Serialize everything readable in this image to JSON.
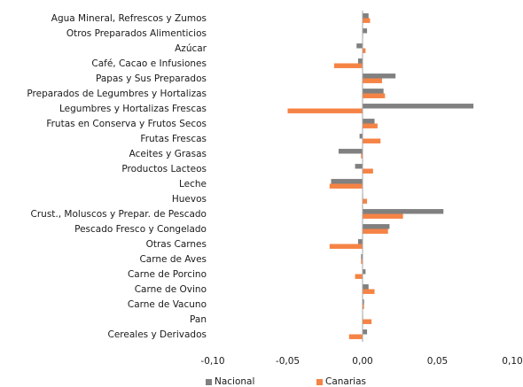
{
  "chart_data": {
    "type": "bar",
    "orientation": "horizontal",
    "categories": [
      "Agua Mineral, Refrescos y Zumos",
      "Otros Preparados Alimenticios",
      "Azúcar",
      "Café, Cacao e Infusiones",
      "Papas y Sus Preparados",
      "Preparados de Legumbres y Hortalizas",
      "Legumbres y Hortalizas Frescas",
      "Frutas en Conserva y Frutos Secos",
      "Frutas Frescas",
      "Aceites y Grasas",
      "Productos Lacteos",
      "Leche",
      "Huevos",
      "Crust., Moluscos y Prepar. de Pescado",
      "Pescado Fresco y Congelado",
      "Otras Carnes",
      "Carne de Aves",
      "Carne de Porcino",
      "Carne de Ovino",
      "Carne de Vacuno",
      "Pan",
      "Cereales y Derivados"
    ],
    "series": [
      {
        "name": "Nacional",
        "color": "#808080",
        "values": [
          0.004,
          0.003,
          -0.004,
          -0.003,
          0.022,
          0.014,
          0.074,
          0.008,
          -0.002,
          -0.016,
          -0.005,
          -0.021,
          0.0,
          0.054,
          0.018,
          -0.003,
          -0.001,
          0.002,
          0.004,
          0.001,
          0.0,
          0.003
        ]
      },
      {
        "name": "Canarias",
        "color": "#f58345",
        "values": [
          0.005,
          0.0,
          0.002,
          -0.019,
          0.013,
          0.015,
          -0.05,
          0.01,
          0.012,
          -0.001,
          0.007,
          -0.022,
          0.003,
          0.027,
          0.017,
          -0.022,
          -0.001,
          -0.005,
          0.008,
          0.001,
          0.006,
          -0.009
        ]
      }
    ],
    "xaxis": {
      "ticks": [
        "-0,10",
        "-0,05",
        "0,00",
        "0,05",
        "0,10"
      ],
      "tick_values": [
        -0.1,
        -0.05,
        0.0,
        0.05,
        0.1
      ],
      "xlim": [
        -0.1,
        0.1
      ]
    },
    "grid": false,
    "legend_position": "bottom",
    "title": "",
    "xlabel": "",
    "ylabel": ""
  }
}
